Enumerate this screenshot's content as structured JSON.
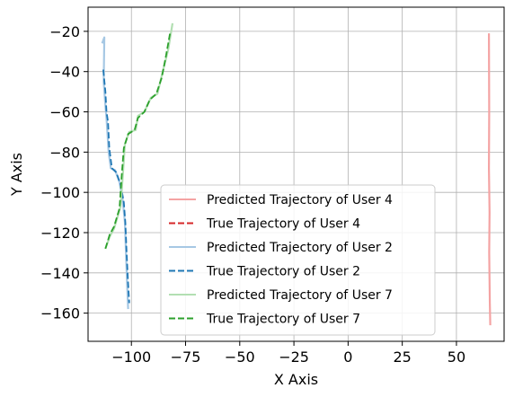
{
  "chart_data": {
    "type": "line",
    "title": "",
    "xlabel": "X Axis",
    "ylabel": "Y Axis",
    "xlim": [
      -120,
      72
    ],
    "ylim": [
      -174,
      -8
    ],
    "xticks": [
      -100,
      -75,
      -50,
      -25,
      0,
      25,
      50
    ],
    "xtick_labels": [
      "−100",
      "−75",
      "−50",
      "−25",
      "0",
      "25",
      "50"
    ],
    "yticks": [
      -20,
      -40,
      -60,
      -80,
      -100,
      -120,
      -140,
      -160
    ],
    "ytick_labels": [
      "−20",
      "−40",
      "−60",
      "−80",
      "−100",
      "−120",
      "−140",
      "−160"
    ],
    "grid": true,
    "legend_position": "lower-right",
    "series": [
      {
        "name": "Predicted Trajectory of User 4",
        "color": "#f4a3a3",
        "style": "solid",
        "points": [
          [
            65,
            -21
          ],
          [
            65.1,
            -60
          ],
          [
            65.0,
            -88
          ],
          [
            65.3,
            -110
          ],
          [
            65.1,
            -130
          ],
          [
            65.4,
            -155
          ],
          [
            65.6,
            -166
          ]
        ]
      },
      {
        "name": "True Trajectory of User 4",
        "color": "#d62728",
        "style": "dashed",
        "points": []
      },
      {
        "name": "Predicted Trajectory of User 2",
        "color": "#a6c8e4",
        "style": "solid",
        "points": [
          [
            -113.5,
            -26
          ],
          [
            -112.5,
            -23
          ],
          [
            -112.8,
            -45
          ],
          [
            -112,
            -57
          ],
          [
            -111.5,
            -63
          ],
          [
            -110.5,
            -80
          ],
          [
            -109.5,
            -88
          ],
          [
            -107.5,
            -89
          ],
          [
            -105.5,
            -95
          ],
          [
            -104,
            -104
          ],
          [
            -103,
            -115
          ],
          [
            -102.5,
            -130
          ],
          [
            -102,
            -145
          ],
          [
            -101.5,
            -158
          ]
        ]
      },
      {
        "name": "True Trajectory of User 2",
        "color": "#1f77b4",
        "style": "dashed",
        "points": [
          [
            -113,
            -39
          ],
          [
            -112,
            -50
          ],
          [
            -111.5,
            -60
          ],
          [
            -110.8,
            -65
          ],
          [
            -110.2,
            -78
          ],
          [
            -109,
            -88
          ],
          [
            -107,
            -90
          ],
          [
            -105,
            -96
          ],
          [
            -103.5,
            -105
          ],
          [
            -102.8,
            -115
          ],
          [
            -102.2,
            -130
          ],
          [
            -101.6,
            -144
          ],
          [
            -101,
            -155
          ]
        ]
      },
      {
        "name": "Predicted Trajectory of User 7",
        "color": "#b2dfb2",
        "style": "solid",
        "points": [
          [
            -112,
            -128
          ],
          [
            -110,
            -122
          ],
          [
            -108,
            -118
          ],
          [
            -105,
            -107
          ],
          [
            -104,
            -92
          ],
          [
            -103,
            -76
          ],
          [
            -101,
            -70
          ],
          [
            -98,
            -69
          ],
          [
            -97,
            -62
          ],
          [
            -94,
            -60
          ],
          [
            -91,
            -53
          ],
          [
            -88,
            -51
          ],
          [
            -86,
            -42
          ],
          [
            -83,
            -29
          ],
          [
            -81,
            -16
          ]
        ]
      },
      {
        "name": "True Trajectory of User 7",
        "color": "#2ca02c",
        "style": "dashed",
        "points": [
          [
            -112,
            -128
          ],
          [
            -110,
            -121
          ],
          [
            -108,
            -117
          ],
          [
            -105.5,
            -108
          ],
          [
            -104.5,
            -92
          ],
          [
            -103.5,
            -78
          ],
          [
            -101.5,
            -71
          ],
          [
            -98.5,
            -69
          ],
          [
            -97,
            -63
          ],
          [
            -94,
            -60
          ],
          [
            -91.5,
            -54
          ],
          [
            -88.5,
            -51
          ],
          [
            -86,
            -43
          ],
          [
            -84,
            -32
          ],
          [
            -82,
            -20
          ]
        ]
      }
    ]
  }
}
